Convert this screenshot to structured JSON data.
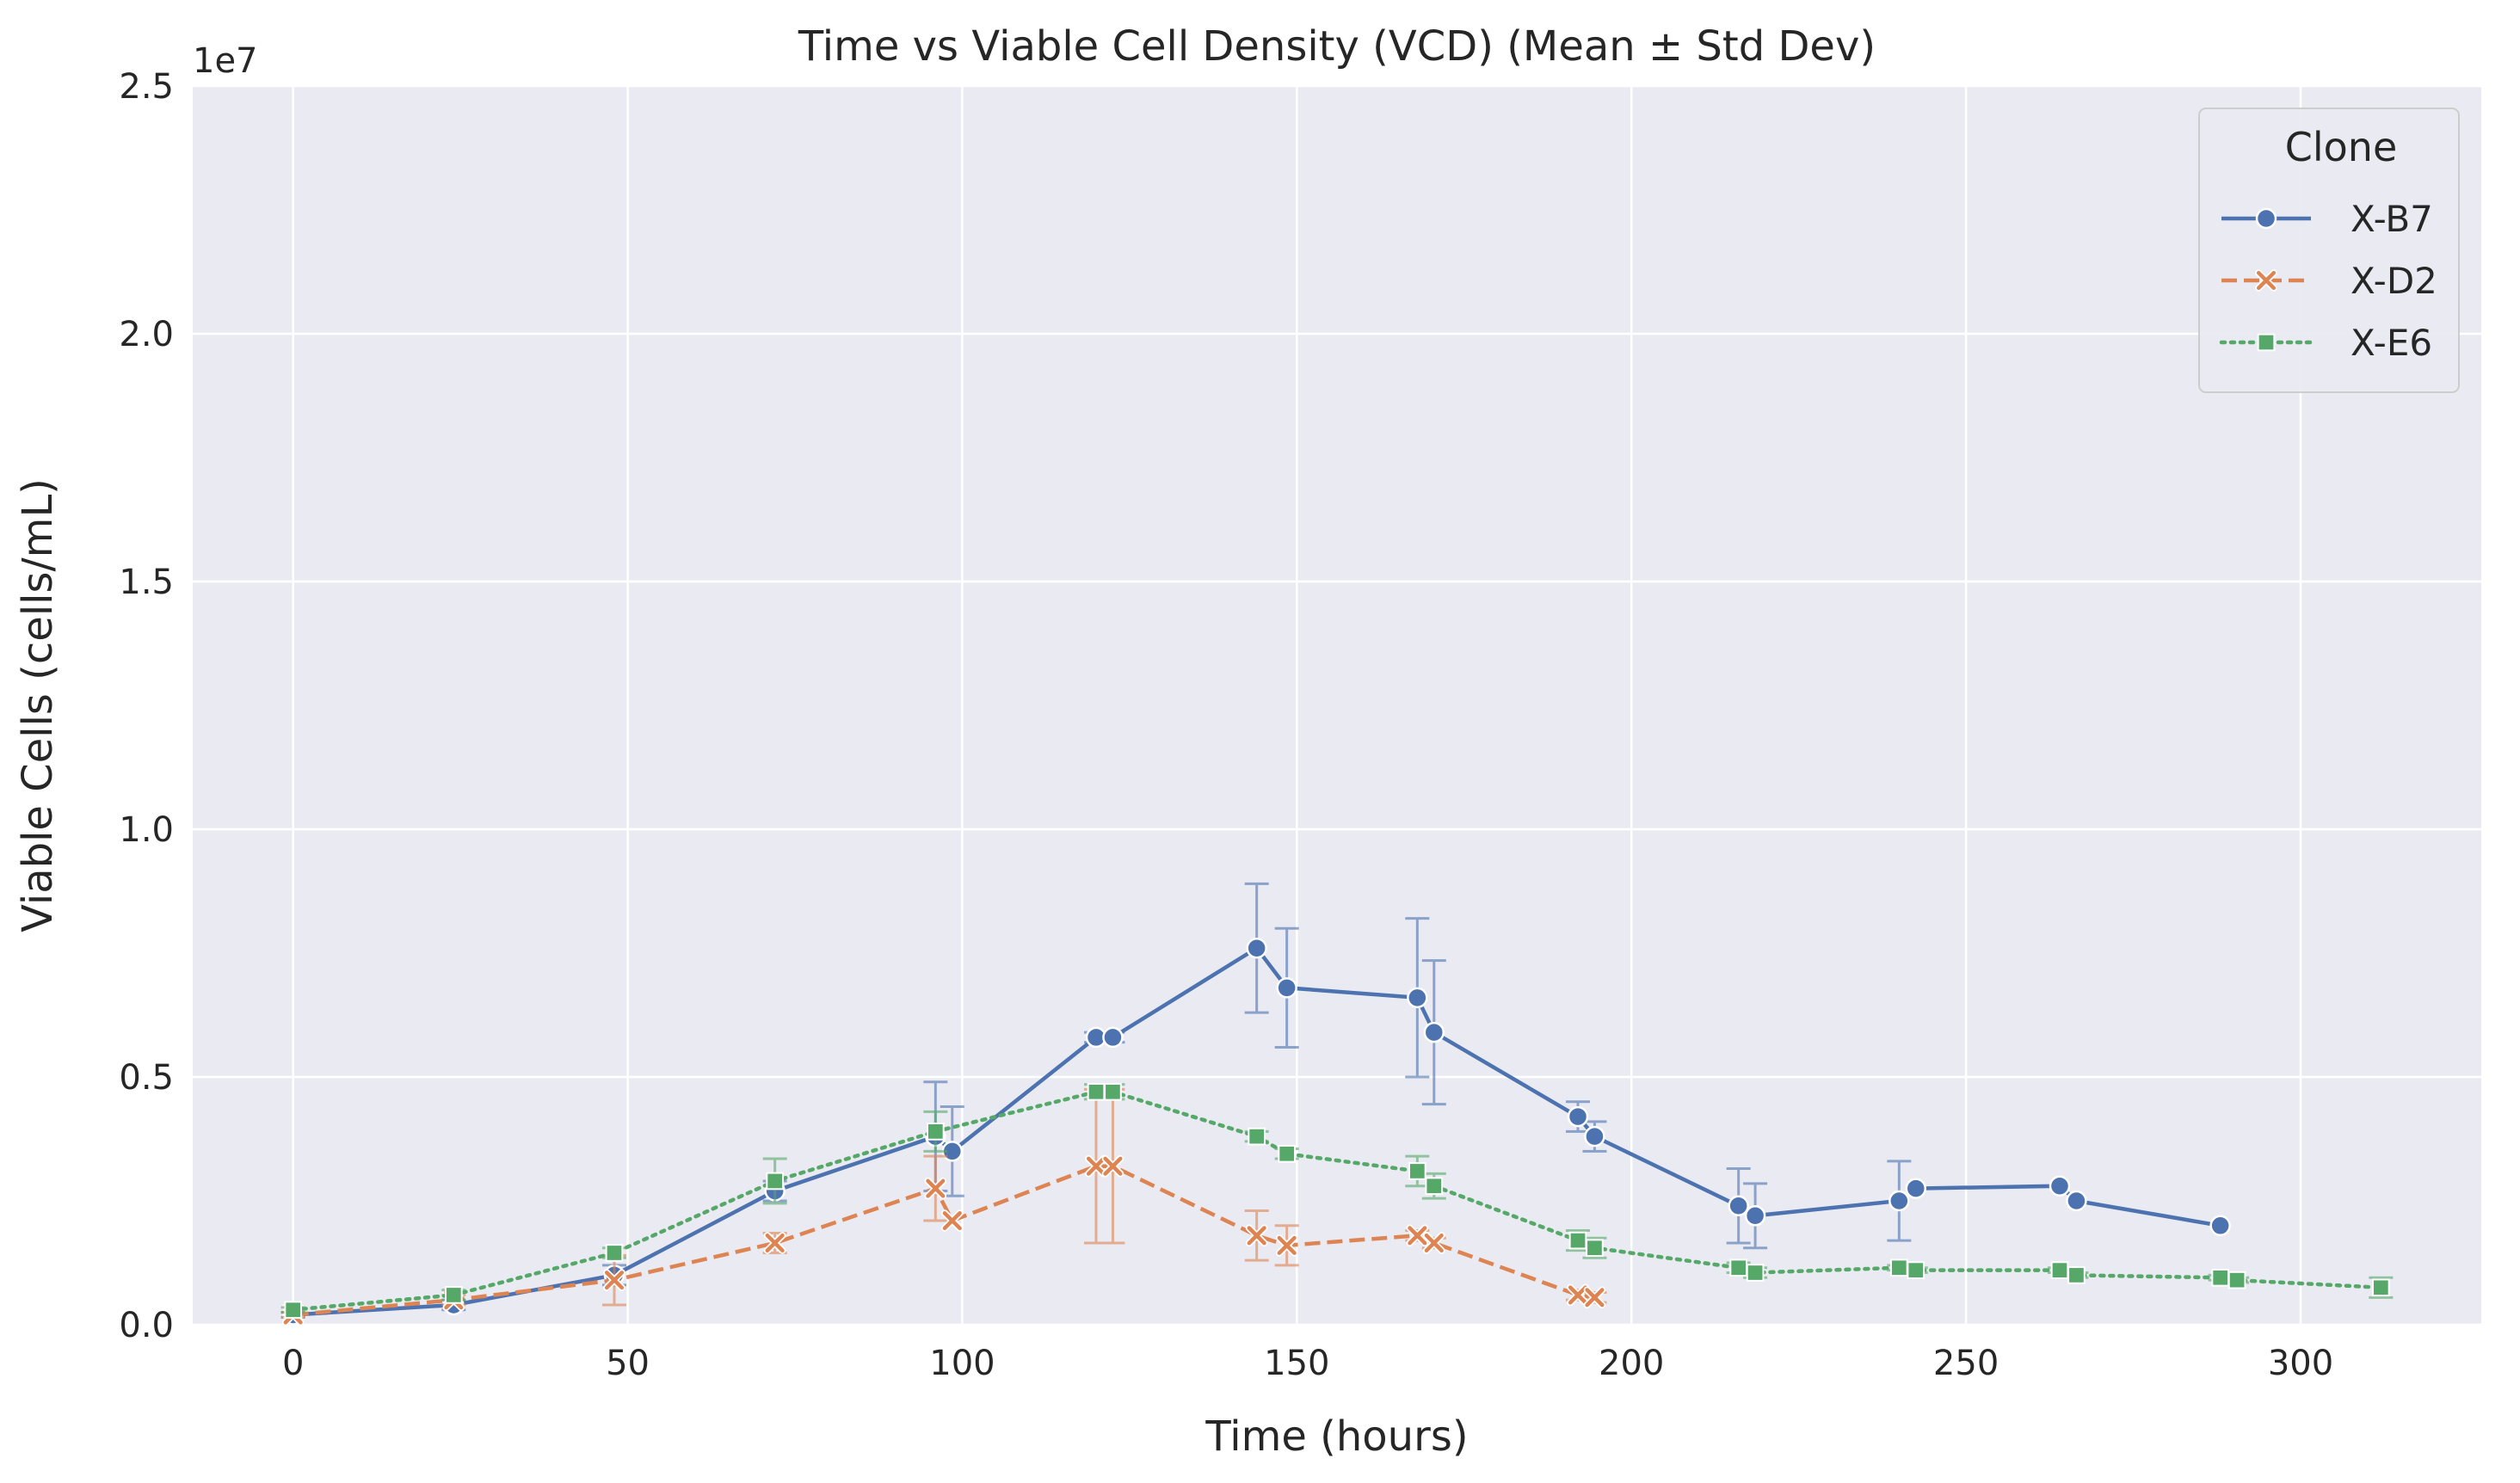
{
  "chart_data": {
    "type": "line",
    "title": "Time vs Viable Cell Density (VCD) (Mean ± Std Dev)",
    "xlabel": "Time (hours)",
    "ylabel": "Viable Cells (cells/mL)",
    "y_offset_label": "1e7",
    "xlim": [
      -15,
      327
    ],
    "ylim": [
      0,
      2.5
    ],
    "x_ticks": [
      0,
      50,
      100,
      150,
      200,
      250,
      300
    ],
    "x_tick_labels": [
      "0",
      "50",
      "100",
      "150",
      "200",
      "250",
      "300"
    ],
    "y_ticks": [
      0,
      0.5,
      1.0,
      1.5,
      2.0,
      2.5
    ],
    "y_tick_labels": [
      "0.0",
      "0.5",
      "1.0",
      "1.5",
      "2.0",
      "2.5"
    ],
    "grid": true,
    "legend": {
      "title": "Clone",
      "placement": "top-right"
    },
    "series": [
      {
        "name": "X-B7",
        "color": "#4c72b0",
        "marker": "circle",
        "line_style": "solid",
        "points": [
          {
            "x": 0,
            "y": 0.02,
            "err": 0.005
          },
          {
            "x": 24,
            "y": 0.04,
            "err": 0.01
          },
          {
            "x": 48,
            "y": 0.1,
            "err": 0.02
          },
          {
            "x": 72,
            "y": 0.27,
            "err": 0.02
          },
          {
            "x": 96,
            "y": 0.38,
            "err": 0.11
          },
          {
            "x": 98.5,
            "y": 0.35,
            "err": 0.09
          },
          {
            "x": 120,
            "y": 0.58,
            "err": 0.01
          },
          {
            "x": 122.5,
            "y": 0.58,
            "err": 0.01
          },
          {
            "x": 144,
            "y": 0.76,
            "err": 0.13
          },
          {
            "x": 148.5,
            "y": 0.68,
            "err": 0.12
          },
          {
            "x": 168,
            "y": 0.66,
            "err": 0.16
          },
          {
            "x": 170.5,
            "y": 0.59,
            "err": 0.145
          },
          {
            "x": 192,
            "y": 0.42,
            "err": 0.03
          },
          {
            "x": 194.5,
            "y": 0.38,
            "err": 0.03
          },
          {
            "x": 216,
            "y": 0.24,
            "err": 0.075
          },
          {
            "x": 218.5,
            "y": 0.22,
            "err": 0.065
          },
          {
            "x": 240,
            "y": 0.25,
            "err": 0.08
          },
          {
            "x": 242.5,
            "y": 0.275,
            "err": 0
          },
          {
            "x": 264,
            "y": 0.28,
            "err": 0
          },
          {
            "x": 266.5,
            "y": 0.25,
            "err": 0
          },
          {
            "x": 288,
            "y": 0.2,
            "err": 0
          }
        ]
      },
      {
        "name": "X-D2",
        "color": "#dd8452",
        "marker": "x",
        "line_style": "dashed",
        "points": [
          {
            "x": 0,
            "y": 0.02,
            "err": 0.005
          },
          {
            "x": 24,
            "y": 0.05,
            "err": 0.01
          },
          {
            "x": 48,
            "y": 0.09,
            "err": 0.05
          },
          {
            "x": 72,
            "y": 0.165,
            "err": 0.02
          },
          {
            "x": 96,
            "y": 0.275,
            "err": 0.065
          },
          {
            "x": 98.5,
            "y": 0.21,
            "err": 0
          },
          {
            "x": 120,
            "y": 0.32,
            "err": 0.155
          },
          {
            "x": 122.5,
            "y": 0.32,
            "err": 0.155
          },
          {
            "x": 144,
            "y": 0.18,
            "err": 0.05
          },
          {
            "x": 148.5,
            "y": 0.16,
            "err": 0.04
          },
          {
            "x": 168,
            "y": 0.18,
            "err": 0.01
          },
          {
            "x": 170.5,
            "y": 0.165,
            "err": 0.01
          },
          {
            "x": 192,
            "y": 0.06,
            "err": 0.01
          },
          {
            "x": 194.5,
            "y": 0.055,
            "err": 0.01
          }
        ]
      },
      {
        "name": "X-E6",
        "color": "#55a868",
        "marker": "square",
        "line_style": "dotted",
        "points": [
          {
            "x": 0,
            "y": 0.03,
            "err": 0.005
          },
          {
            "x": 24,
            "y": 0.06,
            "err": 0.01
          },
          {
            "x": 48,
            "y": 0.145,
            "err": 0.01
          },
          {
            "x": 72,
            "y": 0.29,
            "err": 0.045
          },
          {
            "x": 96,
            "y": 0.39,
            "err": 0.04
          },
          {
            "x": 120,
            "y": 0.47,
            "err": 0.015
          },
          {
            "x": 122.5,
            "y": 0.47,
            "err": 0.015
          },
          {
            "x": 144,
            "y": 0.38,
            "err": 0.01
          },
          {
            "x": 148.5,
            "y": 0.345,
            "err": 0.01
          },
          {
            "x": 168,
            "y": 0.31,
            "err": 0.03
          },
          {
            "x": 170.5,
            "y": 0.28,
            "err": 0.025
          },
          {
            "x": 192,
            "y": 0.17,
            "err": 0.02
          },
          {
            "x": 194.5,
            "y": 0.155,
            "err": 0.02
          },
          {
            "x": 216,
            "y": 0.115,
            "err": 0.01
          },
          {
            "x": 218.5,
            "y": 0.105,
            "err": 0.01
          },
          {
            "x": 240,
            "y": 0.115,
            "err": 0.005
          },
          {
            "x": 242.5,
            "y": 0.11,
            "err": 0.005
          },
          {
            "x": 264,
            "y": 0.11,
            "err": 0.005
          },
          {
            "x": 266.5,
            "y": 0.1,
            "err": 0.005
          },
          {
            "x": 288,
            "y": 0.095,
            "err": 0.005
          },
          {
            "x": 290.5,
            "y": 0.09,
            "err": 0.005
          },
          {
            "x": 312,
            "y": 0.075,
            "err": 0.02
          }
        ]
      }
    ]
  }
}
